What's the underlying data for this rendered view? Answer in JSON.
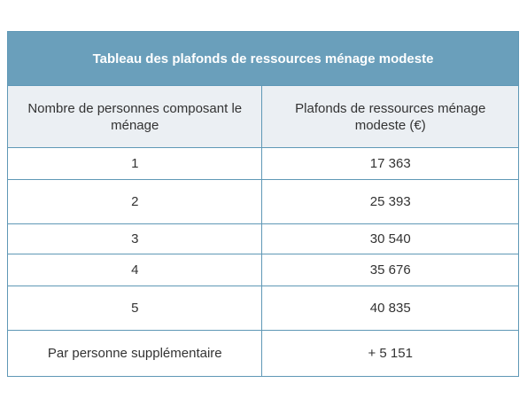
{
  "table": {
    "title": "Tableau des plafonds de ressources ménage modeste",
    "headers": [
      "Nombre de personnes composant le ménage",
      "Plafonds de ressources ménage modeste (€)"
    ],
    "rows": [
      {
        "persons": "1",
        "ceiling": "17 363"
      },
      {
        "persons": "2",
        "ceiling": "25 393"
      },
      {
        "persons": "3",
        "ceiling": "30 540"
      },
      {
        "persons": "4",
        "ceiling": "35 676"
      },
      {
        "persons": "5",
        "ceiling": "40 835"
      },
      {
        "persons": "Par personne supplémentaire",
        "ceiling": "+ 5 151"
      }
    ]
  }
}
